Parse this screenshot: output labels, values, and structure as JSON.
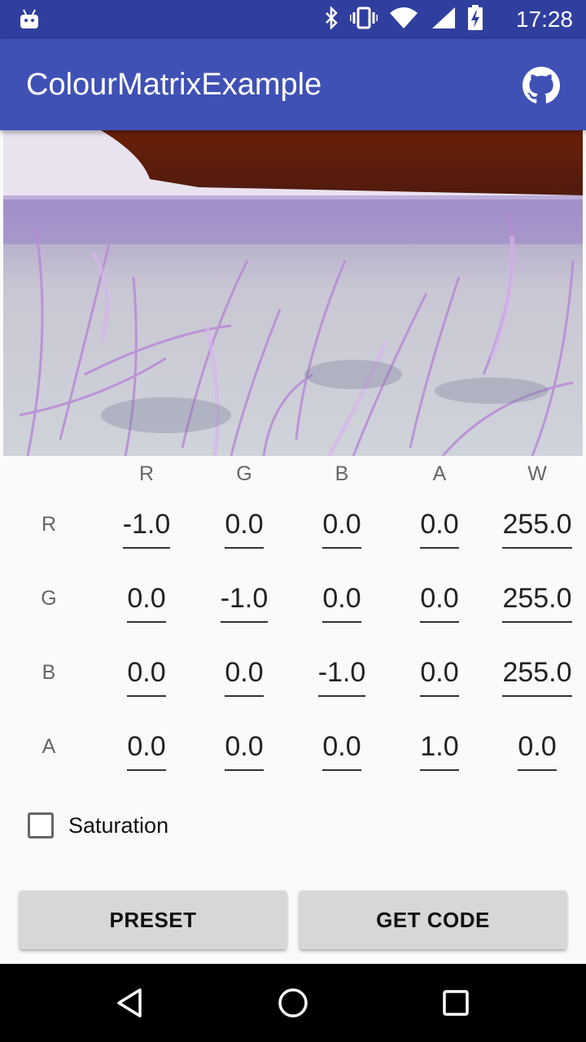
{
  "status_bar": {
    "time": "17:28",
    "icons": [
      "android-notification-icon",
      "bluetooth-icon",
      "vibrate-icon",
      "wifi-icon",
      "cellular-signal-icon",
      "battery-charging-icon"
    ]
  },
  "app_bar": {
    "title": "ColourMatrixExample",
    "action_icon": "github-icon"
  },
  "preview_image": {
    "description_icon": "inverted-grass-photo"
  },
  "matrix": {
    "column_headers": [
      "R",
      "G",
      "B",
      "A",
      "W"
    ],
    "rows": [
      {
        "label": "R",
        "values": [
          "-1.0",
          "0.0",
          "0.0",
          "0.0",
          "255.0"
        ]
      },
      {
        "label": "G",
        "values": [
          "0.0",
          "-1.0",
          "0.0",
          "0.0",
          "255.0"
        ]
      },
      {
        "label": "B",
        "values": [
          "0.0",
          "0.0",
          "-1.0",
          "0.0",
          "255.0"
        ]
      },
      {
        "label": "A",
        "values": [
          "0.0",
          "0.0",
          "0.0",
          "1.0",
          "0.0"
        ]
      }
    ]
  },
  "saturation": {
    "label": "Saturation",
    "checked": false
  },
  "buttons": {
    "preset": "PRESET",
    "get_code": "GET CODE"
  },
  "nav_bar": {
    "icons": [
      "back-icon",
      "home-icon",
      "recents-icon"
    ]
  },
  "colors": {
    "status_bar": "#303f9f",
    "app_bar": "#3f51b5",
    "button": "#d6d7d7",
    "background": "#fafafa"
  }
}
